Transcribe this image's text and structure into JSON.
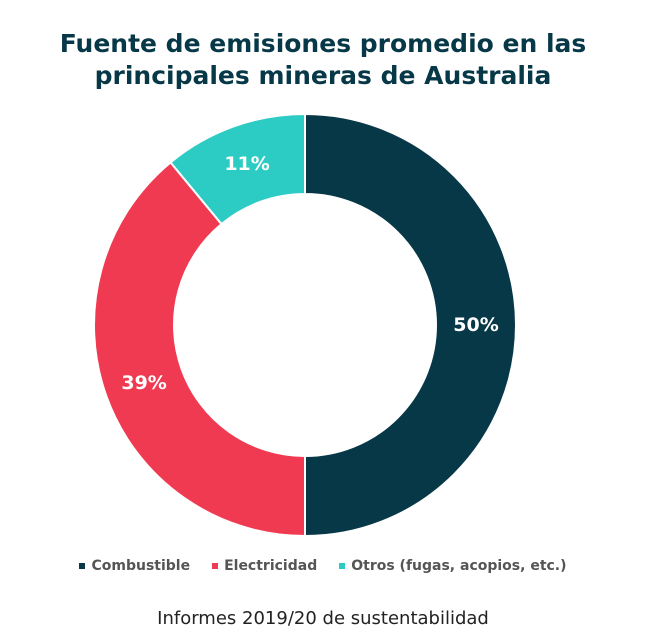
{
  "chart_data": {
    "type": "pie",
    "donut": true,
    "title_lines": [
      "Fuente de emisiones promedio en las",
      "principales mineras de Australia"
    ],
    "slices": [
      {
        "label": "Combustible",
        "value": 50,
        "display": "50%",
        "color": "#073848"
      },
      {
        "label": "Electricidad",
        "value": 39,
        "display": "39%",
        "color": "#F03A52"
      },
      {
        "label": "Otros (fugas, acopios, etc.)",
        "value": 11,
        "display": "11%",
        "color": "#2CCBC3"
      }
    ],
    "legend_position": "bottom",
    "source": "Informes 2019/20 de sustentabilidad"
  }
}
